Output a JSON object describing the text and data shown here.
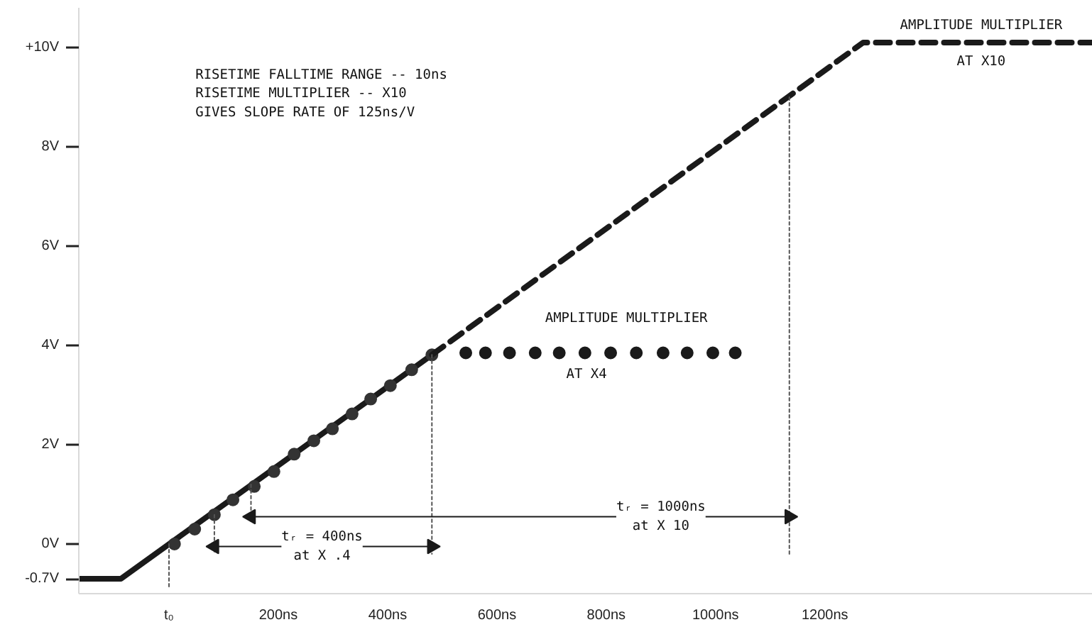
{
  "chart_data": {
    "type": "line",
    "xlim": [
      -165,
      1690
    ],
    "ylim": [
      -1.0,
      10.8
    ],
    "xticks": [
      {
        "value": 0,
        "label": "t₀"
      },
      {
        "value": 200,
        "label": "200ns"
      },
      {
        "value": 400,
        "label": "400ns"
      },
      {
        "value": 600,
        "label": "600ns"
      },
      {
        "value": 800,
        "label": "800ns"
      },
      {
        "value": 1000,
        "label": "1000ns"
      },
      {
        "value": 1200,
        "label": "1200ns"
      }
    ],
    "yticks": [
      {
        "value": -0.7,
        "label": "-0.7V"
      },
      {
        "value": 0,
        "label": "0V"
      },
      {
        "value": 2,
        "label": "2V"
      },
      {
        "value": 4,
        "label": "4V"
      },
      {
        "value": 6,
        "label": "6V"
      },
      {
        "value": 8,
        "label": "8V"
      },
      {
        "value": 10,
        "label": "+10V"
      }
    ],
    "series": [
      {
        "line_style": "solid",
        "color": "#1a1a1a",
        "x": [
          -165,
          -88,
          481
        ],
        "values": [
          -0.7,
          -0.7,
          3.81
        ]
      },
      {
        "type": "scatter",
        "marker": "circle",
        "color": "#333333",
        "x": [
          10,
          47,
          83,
          117,
          156,
          192,
          229,
          265,
          299,
          335,
          369,
          405,
          444,
          481
        ],
        "values": [
          0,
          0.3,
          0.59,
          0.89,
          1.16,
          1.46,
          1.81,
          2.08,
          2.32,
          2.62,
          2.92,
          3.19,
          3.51,
          3.81
        ]
      },
      {
        "type": "scatter",
        "marker": "circle",
        "color": "#1a1a1a",
        "x": [
          543,
          579,
          623,
          670,
          714,
          761,
          808,
          855,
          904,
          948,
          995,
          1036
        ],
        "values": [
          3.85,
          3.85,
          3.85,
          3.85,
          3.85,
          3.85,
          3.85,
          3.85,
          3.85,
          3.85,
          3.85,
          3.85
        ]
      },
      {
        "line_style": "dashed",
        "color": "#1a1a1a",
        "x": [
          481,
          1270,
          1690
        ],
        "values": [
          3.81,
          10.1,
          10.1
        ]
      },
      {
        "line_style": "dotted",
        "color": "#555555",
        "x": [
          0,
          0
        ],
        "values": [
          0,
          -0.9
        ]
      },
      {
        "line_style": "dotted",
        "color": "#555555",
        "x": [
          83,
          83
        ],
        "values": [
          0.59,
          -0.2
        ]
      },
      {
        "line_style": "dotted",
        "color": "#555555",
        "x": [
          150,
          150
        ],
        "values": [
          1.2,
          0.4
        ]
      },
      {
        "line_style": "dotted",
        "color": "#555555",
        "x": [
          481,
          481
        ],
        "values": [
          3.81,
          -0.2
        ]
      },
      {
        "line_style": "dotted",
        "color": "#555555",
        "x": [
          1135,
          1135
        ],
        "values": [
          9.0,
          -0.2
        ]
      },
      {
        "line_style": "solid",
        "marker": "triangle",
        "color": "#1a1a1a",
        "x": [
          83,
          481
        ],
        "values": [
          -0.05,
          -0.05
        ]
      },
      {
        "line_style": "solid",
        "marker": "triangle",
        "color": "#1a1a1a",
        "x": [
          150,
          1135
        ],
        "values": [
          0.55,
          0.55
        ]
      }
    ],
    "annotations": [
      "RISETIME FALLTIME RANGE -- 10ns",
      "RISETIME MULTIPLIER     -- X10",
      "GIVES SLOPE RATE OF 125ns/V",
      "AMPLITUDE MULTIPLIER",
      "AMPLITUDE MULTIPLIER",
      {
        "text": "AT X4",
        "x": 764,
        "y": 3.42
      },
      "AT X10",
      {
        "text": "tᵣ = 400ns\nat X .4",
        "x": 280,
        "y": -0.05
      },
      {
        "text": "tᵣ = 1000ns\nat X 10",
        "x": 900,
        "y": 0.55
      }
    ]
  }
}
